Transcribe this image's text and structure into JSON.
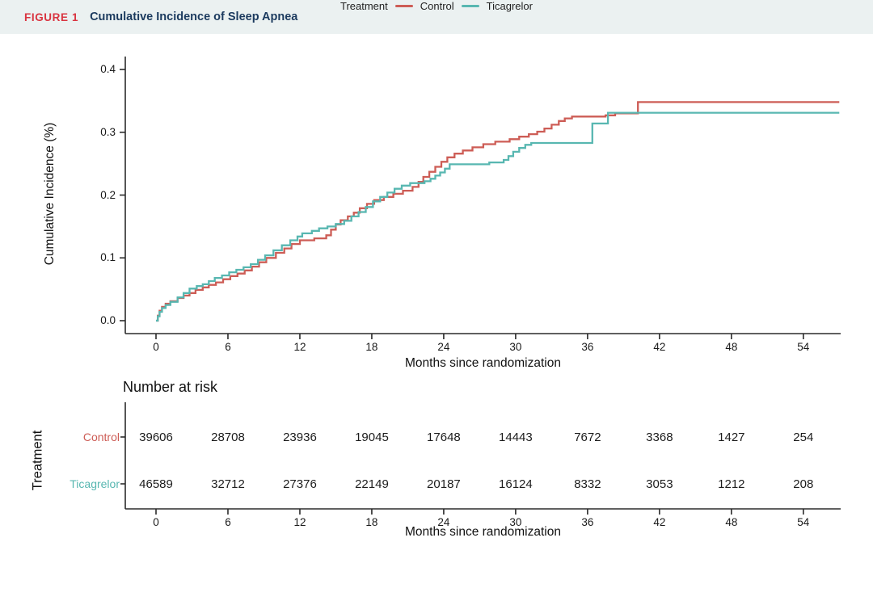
{
  "header": {
    "figure_label": "FIGURE 1",
    "title": "Cumulative Incidence of Sleep Apnea",
    "figure_label_color": "#d93440",
    "title_color": "#1b3a5e",
    "bar_bg": "#ebf1f1"
  },
  "chart_data": {
    "type": "line",
    "subtype": "cumulative-incidence-step-curves",
    "title": "Cumulative Incidence of Sleep Apnea",
    "xlabel": "Months since randomization",
    "ylabel": "Cumulative Incidence (%)",
    "xlim": [
      0,
      57
    ],
    "ylim": [
      0.0,
      0.4
    ],
    "x_ticks": [
      0,
      6,
      12,
      18,
      24,
      30,
      36,
      42,
      48,
      54
    ],
    "y_ticks": [
      "0.0",
      "0.1",
      "0.2",
      "0.3",
      "0.4"
    ],
    "grid": "off",
    "legend_position": "bottom",
    "legend_title": "Treatment",
    "series": [
      {
        "name": "Control",
        "color": "#cd5d56",
        "points": [
          [
            0,
            0
          ],
          [
            0.15,
            0.008
          ],
          [
            0.3,
            0.016
          ],
          [
            0.5,
            0.022
          ],
          [
            0.8,
            0.027
          ],
          [
            1.2,
            0.031
          ],
          [
            1.8,
            0.036
          ],
          [
            2.3,
            0.04
          ],
          [
            2.8,
            0.044
          ],
          [
            3.3,
            0.049
          ],
          [
            3.9,
            0.053
          ],
          [
            4.4,
            0.057
          ],
          [
            5,
            0.061
          ],
          [
            5.6,
            0.066
          ],
          [
            6.2,
            0.071
          ],
          [
            6.8,
            0.075
          ],
          [
            7.4,
            0.08
          ],
          [
            8,
            0.086
          ],
          [
            8.6,
            0.093
          ],
          [
            9.2,
            0.1
          ],
          [
            10,
            0.108
          ],
          [
            10.7,
            0.115
          ],
          [
            11.3,
            0.122
          ],
          [
            12,
            0.128
          ],
          [
            13.2,
            0.131
          ],
          [
            14.2,
            0.136
          ],
          [
            14.6,
            0.145
          ],
          [
            15,
            0.153
          ],
          [
            15.4,
            0.16
          ],
          [
            16,
            0.166
          ],
          [
            16.5,
            0.172
          ],
          [
            17,
            0.179
          ],
          [
            17.6,
            0.186
          ],
          [
            18.2,
            0.192
          ],
          [
            19,
            0.197
          ],
          [
            19.8,
            0.202
          ],
          [
            20.6,
            0.207
          ],
          [
            21.4,
            0.213
          ],
          [
            21.9,
            0.221
          ],
          [
            22.3,
            0.229
          ],
          [
            22.8,
            0.237
          ],
          [
            23.3,
            0.245
          ],
          [
            23.8,
            0.253
          ],
          [
            24.3,
            0.26
          ],
          [
            24.9,
            0.266
          ],
          [
            25.6,
            0.271
          ],
          [
            26.4,
            0.276
          ],
          [
            27.3,
            0.281
          ],
          [
            28.3,
            0.285
          ],
          [
            29.5,
            0.289
          ],
          [
            30.3,
            0.293
          ],
          [
            31.1,
            0.297
          ],
          [
            31.8,
            0.301
          ],
          [
            32.4,
            0.306
          ],
          [
            33,
            0.312
          ],
          [
            33.6,
            0.318
          ],
          [
            34.1,
            0.322
          ],
          [
            34.7,
            0.325
          ],
          [
            37.5,
            0.327
          ],
          [
            38.3,
            0.33
          ],
          [
            40.2,
            0.348
          ],
          [
            57,
            0.348
          ]
        ]
      },
      {
        "name": "Ticagrelor",
        "color": "#58b7b1",
        "points": [
          [
            0,
            0
          ],
          [
            0.15,
            0.007
          ],
          [
            0.3,
            0.014
          ],
          [
            0.5,
            0.02
          ],
          [
            0.8,
            0.025
          ],
          [
            1.2,
            0.03
          ],
          [
            1.8,
            0.037
          ],
          [
            2.3,
            0.044
          ],
          [
            2.8,
            0.051
          ],
          [
            3.4,
            0.055
          ],
          [
            3.9,
            0.058
          ],
          [
            4.4,
            0.063
          ],
          [
            4.9,
            0.068
          ],
          [
            5.5,
            0.072
          ],
          [
            6.1,
            0.077
          ],
          [
            6.7,
            0.081
          ],
          [
            7.3,
            0.085
          ],
          [
            7.9,
            0.09
          ],
          [
            8.5,
            0.097
          ],
          [
            9.1,
            0.104
          ],
          [
            9.8,
            0.112
          ],
          [
            10.5,
            0.12
          ],
          [
            11.2,
            0.128
          ],
          [
            11.8,
            0.134
          ],
          [
            12.2,
            0.139
          ],
          [
            13,
            0.143
          ],
          [
            13.6,
            0.147
          ],
          [
            14.3,
            0.15
          ],
          [
            15,
            0.154
          ],
          [
            15.7,
            0.159
          ],
          [
            16.3,
            0.166
          ],
          [
            16.9,
            0.173
          ],
          [
            17.5,
            0.181
          ],
          [
            18.1,
            0.19
          ],
          [
            18.7,
            0.197
          ],
          [
            19.3,
            0.204
          ],
          [
            19.9,
            0.21
          ],
          [
            20.5,
            0.215
          ],
          [
            21.2,
            0.219
          ],
          [
            22.4,
            0.222
          ],
          [
            22.9,
            0.226
          ],
          [
            23.3,
            0.231
          ],
          [
            23.7,
            0.236
          ],
          [
            24.1,
            0.242
          ],
          [
            24.5,
            0.249
          ],
          [
            27.8,
            0.252
          ],
          [
            29,
            0.256
          ],
          [
            29.4,
            0.262
          ],
          [
            29.8,
            0.269
          ],
          [
            30.3,
            0.275
          ],
          [
            30.8,
            0.28
          ],
          [
            31.3,
            0.283
          ],
          [
            36.4,
            0.314
          ],
          [
            37.7,
            0.331
          ],
          [
            57,
            0.331
          ]
        ]
      }
    ],
    "risk_table": {
      "title": "Number at risk",
      "row_axis_label": "Treatment",
      "xlabel": "Months since randomization",
      "columns": [
        0,
        6,
        12,
        18,
        24,
        30,
        36,
        42,
        48,
        54
      ],
      "rows": [
        {
          "name": "Control",
          "color": "#cd5d56",
          "values": [
            "39606",
            "28708",
            "23936",
            "19045",
            "17648",
            "14443",
            "7672",
            "3368",
            "1427",
            "254"
          ]
        },
        {
          "name": "Ticagrelor",
          "color": "#58b7b1",
          "values": [
            "46589",
            "32712",
            "27376",
            "22149",
            "20187",
            "16124",
            "8332",
            "3053",
            "1212",
            "208"
          ]
        }
      ]
    }
  }
}
